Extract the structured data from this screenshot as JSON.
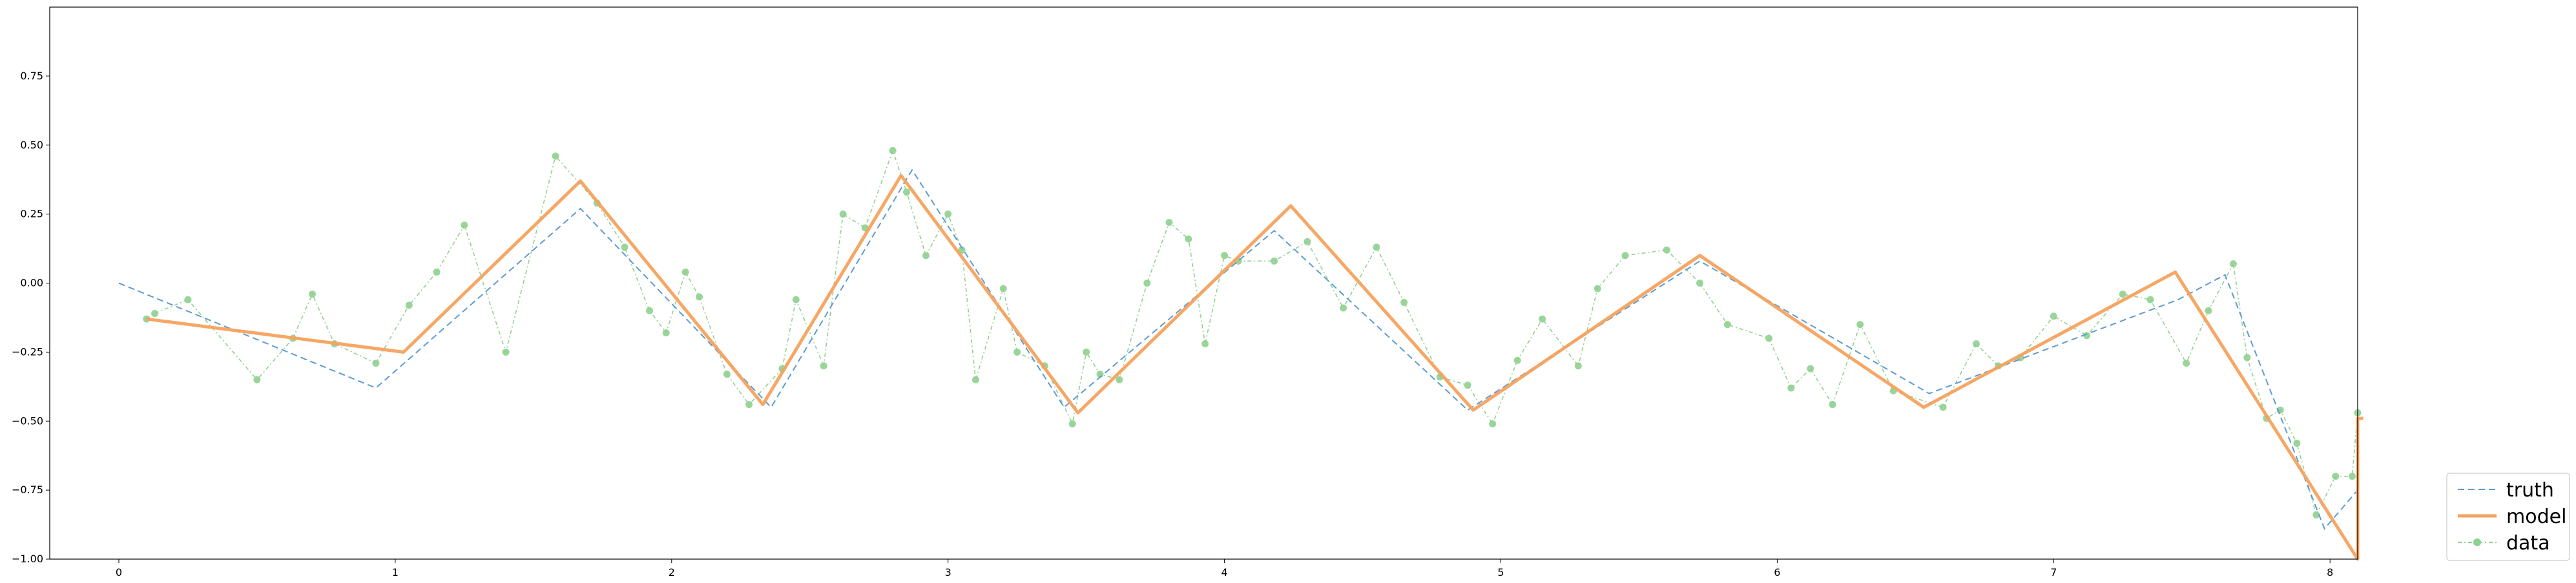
{
  "chart_data": {
    "type": "line",
    "title": "",
    "xlabel": "",
    "ylabel": "",
    "xlim": [
      -0.25,
      8.1
    ],
    "ylim": [
      -1.0,
      1.0
    ],
    "xticks": [
      0,
      1,
      2,
      3,
      4,
      5,
      6,
      7,
      8
    ],
    "yticks": [
      -1.0,
      -0.75,
      -0.5,
      -0.25,
      0.0,
      0.25,
      0.5,
      0.75
    ],
    "xtick_labels": [
      "0",
      "1",
      "2",
      "3",
      "4",
      "5",
      "6",
      "7",
      "8"
    ],
    "ytick_labels": [
      "−1.00",
      "−0.75",
      "−0.50",
      "−0.25",
      "0.00",
      "0.25",
      "0.50",
      "0.75"
    ],
    "legend_position": "lower-right-outside",
    "series": [
      {
        "name": "truth",
        "color": "#5b9bd5",
        "style": "dashed",
        "x": [
          0.0,
          0.93,
          1.67,
          2.36,
          2.87,
          3.42,
          4.18,
          4.88,
          5.72,
          6.55,
          7.45,
          7.62,
          7.98,
          8.1
        ],
        "y": [
          0.0,
          -0.38,
          0.27,
          -0.45,
          0.41,
          -0.45,
          0.19,
          -0.46,
          0.08,
          -0.4,
          -0.06,
          0.03,
          -0.89,
          -0.75
        ]
      },
      {
        "name": "model",
        "color": "#f5a25d",
        "style": "solid",
        "x": [
          0.1,
          1.03,
          1.67,
          2.33,
          2.83,
          3.47,
          4.24,
          4.9,
          5.72,
          6.53,
          7.44,
          8.1,
          8.1,
          8.12
        ],
        "y": [
          -0.13,
          -0.25,
          0.37,
          -0.44,
          0.39,
          -0.47,
          0.28,
          -0.46,
          0.1,
          -0.45,
          0.04,
          -1.0,
          -0.49,
          -0.49
        ]
      },
      {
        "name": "data",
        "color": "#8fd08f",
        "style": "dashdot-markers",
        "x": [
          0.1,
          0.13,
          0.25,
          0.5,
          0.63,
          0.7,
          0.78,
          0.93,
          1.05,
          1.15,
          1.25,
          1.4,
          1.58,
          1.73,
          1.83,
          1.92,
          1.98,
          2.05,
          2.1,
          2.2,
          2.28,
          2.4,
          2.45,
          2.55,
          2.62,
          2.7,
          2.8,
          2.85,
          2.92,
          3.0,
          3.05,
          3.1,
          3.2,
          3.25,
          3.35,
          3.45,
          3.5,
          3.55,
          3.62,
          3.72,
          3.8,
          3.87,
          3.93,
          4.0,
          4.05,
          4.18,
          4.3,
          4.43,
          4.55,
          4.65,
          4.78,
          4.88,
          4.97,
          5.06,
          5.15,
          5.28,
          5.35,
          5.45,
          5.6,
          5.72,
          5.82,
          5.97,
          6.05,
          6.12,
          6.2,
          6.3,
          6.42,
          6.6,
          6.72,
          6.8,
          6.88,
          7.0,
          7.12,
          7.25,
          7.35,
          7.48,
          7.56,
          7.65,
          7.7,
          7.77,
          7.82,
          7.88,
          7.95,
          8.02,
          8.08,
          8.1
        ],
        "y": [
          -0.13,
          -0.11,
          -0.06,
          -0.35,
          -0.2,
          -0.04,
          -0.22,
          -0.29,
          -0.08,
          0.04,
          0.21,
          -0.25,
          0.46,
          0.29,
          0.13,
          -0.1,
          -0.18,
          0.04,
          -0.05,
          -0.33,
          -0.44,
          -0.31,
          -0.06,
          -0.3,
          0.25,
          0.2,
          0.48,
          0.33,
          0.1,
          0.25,
          0.12,
          -0.35,
          -0.02,
          -0.25,
          -0.3,
          -0.51,
          -0.25,
          -0.33,
          -0.35,
          0.0,
          0.22,
          0.16,
          -0.22,
          0.1,
          0.08,
          0.08,
          0.15,
          -0.09,
          0.13,
          -0.07,
          -0.34,
          -0.37,
          -0.51,
          -0.28,
          -0.13,
          -0.3,
          -0.02,
          0.1,
          0.12,
          0.0,
          -0.15,
          -0.2,
          -0.38,
          -0.31,
          -0.44,
          -0.15,
          -0.39,
          -0.45,
          -0.22,
          -0.3,
          -0.27,
          -0.12,
          -0.19,
          -0.04,
          -0.06,
          -0.29,
          -0.1,
          0.07,
          -0.27,
          -0.49,
          -0.46,
          -0.58,
          -0.84,
          -0.7,
          -0.7,
          -0.47
        ]
      }
    ]
  }
}
